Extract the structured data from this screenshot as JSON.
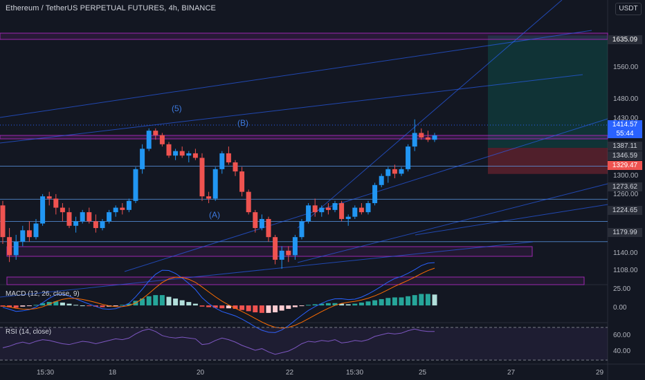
{
  "header": {
    "title": "Ethereum / TetherUS PERPETUAL FUTURES, 4h, BINANCE",
    "currency": "USDT"
  },
  "price_axis": {
    "ticks": [
      "1560.00",
      "1480.00",
      "1430.00",
      "1300.00",
      "1260.00",
      "1140.00",
      "1108.00"
    ]
  },
  "price_tags": [
    {
      "label": "1635.09",
      "bg": "#2a2e39",
      "fg": "#ffffff"
    },
    {
      "label": "1414.57",
      "bg": "#2962ff",
      "fg": "#ffffff"
    },
    {
      "label": "55:44",
      "bg": "#2962ff",
      "fg": "#ffffff"
    },
    {
      "label": "1387.11",
      "bg": "#2a2e39",
      "fg": "#d1d4dc"
    },
    {
      "label": "1346.59",
      "bg": "#2a2e39",
      "fg": "#d1d4dc"
    },
    {
      "label": "1329.47",
      "bg": "#ef5350",
      "fg": "#ffffff"
    },
    {
      "label": "1273.62",
      "bg": "#2a2e39",
      "fg": "#d1d4dc"
    },
    {
      "label": "1224.65",
      "bg": "#2a2e39",
      "fg": "#d1d4dc"
    },
    {
      "label": "1179.99",
      "bg": "#2a2e39",
      "fg": "#d1d4dc"
    }
  ],
  "wave_labels": [
    "(5)",
    "(B)",
    "(A)"
  ],
  "macd": {
    "label": "MACD (12, 26, close, 9)",
    "ticks": [
      "25.00",
      "0.00"
    ]
  },
  "rsi": {
    "label": "RSI (14, close)",
    "ticks": [
      "60.00",
      "40.00"
    ]
  },
  "time_axis": {
    "ticks": [
      "15:30",
      "18",
      "20",
      "22",
      "15:30",
      "25",
      "27",
      "29"
    ]
  },
  "colors": {
    "background": "#131722",
    "up": "#2196f3",
    "down": "#ef5350",
    "zone": "#9c27b0",
    "trend": "#2962ff"
  },
  "chart_data": {
    "type": "candlestick",
    "symbol": "Ethereum / TetherUS PERPETUAL FUTURES",
    "interval": "4h",
    "exchange": "BINANCE",
    "candles": [
      [
        1260,
        1270,
        1175,
        1190
      ],
      [
        1190,
        1210,
        1135,
        1150
      ],
      [
        1150,
        1195,
        1140,
        1180
      ],
      [
        1180,
        1215,
        1170,
        1205
      ],
      [
        1205,
        1225,
        1180,
        1190
      ],
      [
        1190,
        1230,
        1185,
        1220
      ],
      [
        1220,
        1285,
        1215,
        1280
      ],
      [
        1280,
        1290,
        1260,
        1275
      ],
      [
        1275,
        1285,
        1240,
        1255
      ],
      [
        1255,
        1265,
        1225,
        1245
      ],
      [
        1245,
        1255,
        1210,
        1215
      ],
      [
        1215,
        1235,
        1200,
        1225
      ],
      [
        1225,
        1250,
        1220,
        1245
      ],
      [
        1245,
        1255,
        1220,
        1225
      ],
      [
        1225,
        1240,
        1200,
        1210
      ],
      [
        1210,
        1230,
        1205,
        1225
      ],
      [
        1225,
        1250,
        1220,
        1245
      ],
      [
        1245,
        1260,
        1235,
        1255
      ],
      [
        1255,
        1265,
        1240,
        1250
      ],
      [
        1250,
        1275,
        1245,
        1270
      ],
      [
        1270,
        1345,
        1265,
        1340
      ],
      [
        1340,
        1395,
        1330,
        1385
      ],
      [
        1385,
        1430,
        1380,
        1425
      ],
      [
        1425,
        1430,
        1405,
        1415
      ],
      [
        1415,
        1420,
        1390,
        1395
      ],
      [
        1395,
        1400,
        1365,
        1370
      ],
      [
        1370,
        1385,
        1360,
        1380
      ],
      [
        1380,
        1390,
        1365,
        1370
      ],
      [
        1370,
        1380,
        1355,
        1375
      ],
      [
        1375,
        1385,
        1360,
        1365
      ],
      [
        1365,
        1375,
        1270,
        1280
      ],
      [
        1280,
        1290,
        1265,
        1275
      ],
      [
        1275,
        1345,
        1270,
        1340
      ],
      [
        1340,
        1380,
        1330,
        1375
      ],
      [
        1375,
        1390,
        1350,
        1355
      ],
      [
        1355,
        1360,
        1325,
        1335
      ],
      [
        1335,
        1345,
        1280,
        1290
      ],
      [
        1290,
        1295,
        1240,
        1245
      ],
      [
        1245,
        1250,
        1200,
        1210
      ],
      [
        1210,
        1240,
        1205,
        1230
      ],
      [
        1230,
        1235,
        1180,
        1190
      ],
      [
        1190,
        1195,
        1130,
        1140
      ],
      [
        1140,
        1170,
        1120,
        1160
      ],
      [
        1160,
        1170,
        1135,
        1150
      ],
      [
        1150,
        1195,
        1140,
        1190
      ],
      [
        1190,
        1230,
        1185,
        1225
      ],
      [
        1225,
        1265,
        1220,
        1260
      ],
      [
        1260,
        1275,
        1235,
        1245
      ],
      [
        1245,
        1260,
        1235,
        1255
      ],
      [
        1255,
        1265,
        1240,
        1250
      ],
      [
        1250,
        1270,
        1245,
        1265
      ],
      [
        1265,
        1270,
        1225,
        1230
      ],
      [
        1230,
        1240,
        1215,
        1235
      ],
      [
        1235,
        1260,
        1230,
        1255
      ],
      [
        1255,
        1265,
        1240,
        1245
      ],
      [
        1245,
        1270,
        1240,
        1265
      ],
      [
        1265,
        1310,
        1260,
        1305
      ],
      [
        1305,
        1330,
        1300,
        1325
      ],
      [
        1325,
        1345,
        1310,
        1340
      ],
      [
        1340,
        1350,
        1320,
        1330
      ],
      [
        1330,
        1345,
        1325,
        1340
      ],
      [
        1340,
        1395,
        1335,
        1390
      ],
      [
        1390,
        1450,
        1380,
        1420
      ],
      [
        1420,
        1430,
        1405,
        1410
      ],
      [
        1410,
        1425,
        1400,
        1405
      ],
      [
        1405,
        1420,
        1400,
        1414.57
      ]
    ],
    "levels": [
      1635.09,
      1387.11,
      1346.59,
      1329.47,
      1273.62,
      1224.65,
      1179.99
    ],
    "position": {
      "entry": 1387.11,
      "target": 1635.09,
      "stop": 1329.47
    },
    "macd_hist": [
      -2,
      -3,
      -4,
      -2,
      -1,
      1,
      4,
      6,
      7,
      5,
      3,
      1,
      0,
      -1,
      -2,
      -3,
      -2,
      -1,
      1,
      3,
      8,
      12,
      16,
      18,
      18,
      15,
      12,
      9,
      6,
      3,
      -2,
      -3,
      -4,
      -5,
      -5,
      -6,
      -8,
      -10,
      -12,
      -13,
      -13,
      -12,
      -9,
      -6,
      -3,
      -1,
      1,
      2,
      3,
      4,
      4,
      3,
      2,
      3,
      5,
      7,
      9,
      11,
      13,
      14,
      14,
      16,
      18,
      20,
      20,
      19
    ],
    "rsi": [
      45,
      47,
      50,
      52,
      50,
      53,
      55,
      54,
      52,
      50,
      49,
      51,
      53,
      52,
      50,
      52,
      54,
      56,
      55,
      57,
      62,
      66,
      68,
      65,
      60,
      58,
      57,
      58,
      57,
      56,
      49,
      50,
      54,
      57,
      55,
      52,
      48,
      45,
      42,
      44,
      40,
      37,
      39,
      41,
      45,
      50,
      53,
      52,
      54,
      53,
      55,
      51,
      52,
      54,
      53,
      55,
      59,
      61,
      63,
      62,
      63,
      66,
      68,
      66,
      65,
      65
    ],
    "price_range": [
      1085,
      1680
    ],
    "macd_range": [
      -30,
      35
    ],
    "rsi_range": [
      25,
      75
    ]
  }
}
